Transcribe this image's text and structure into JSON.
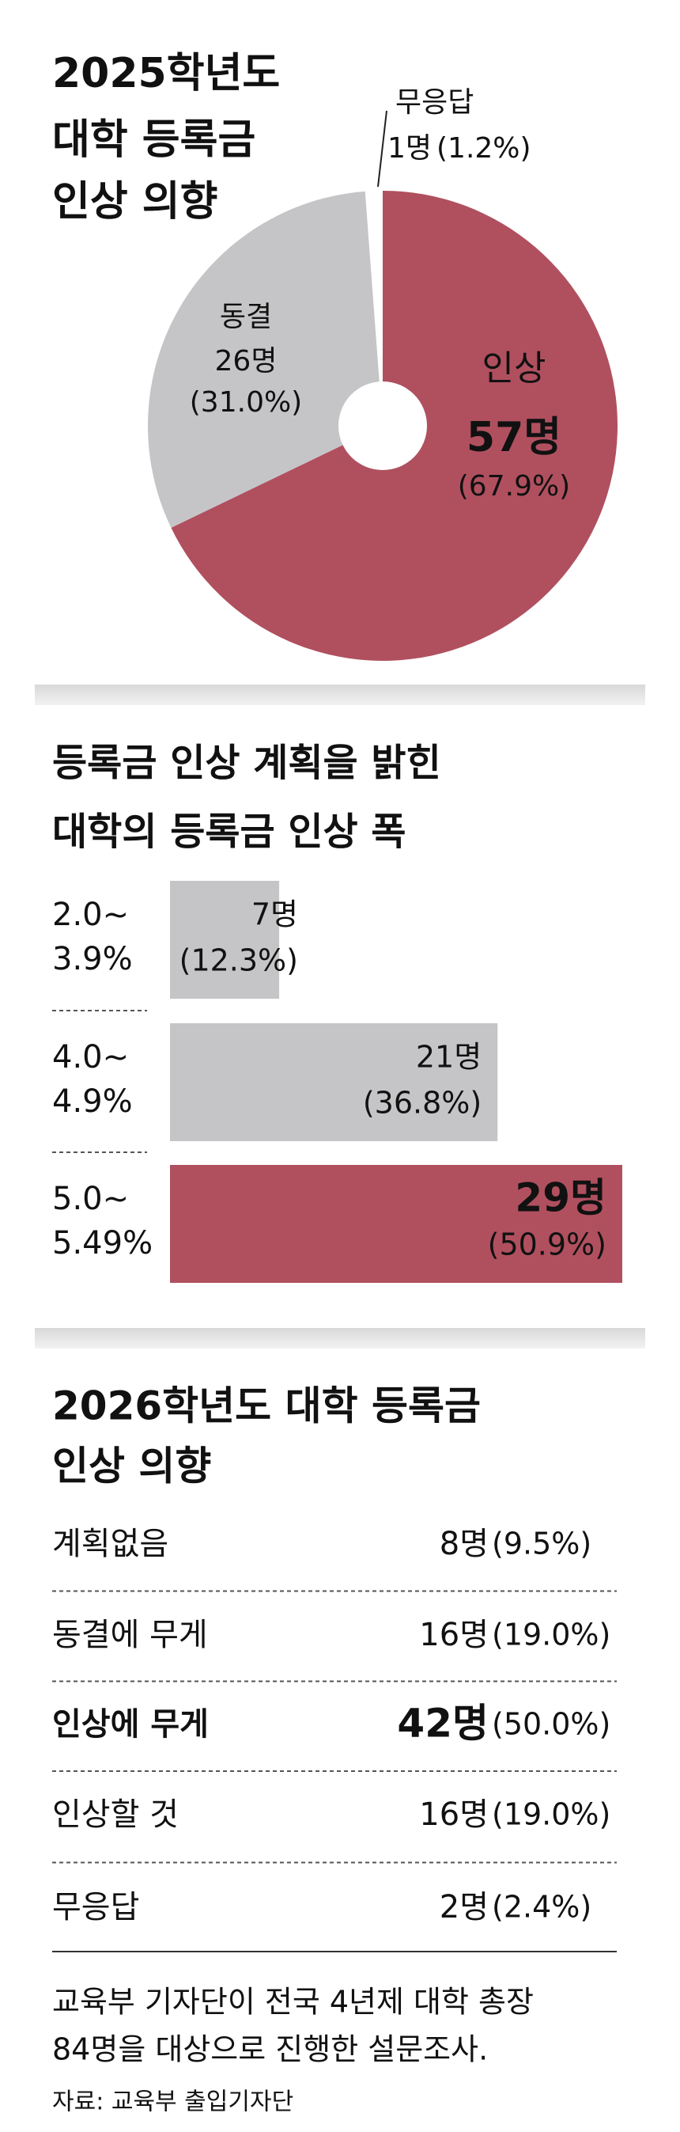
{
  "chart_data": [
    {
      "type": "pie",
      "title": [
        "2025학년도",
        "대학 등록금",
        "인상 의향"
      ],
      "categories": [
        "인상",
        "동결",
        "무응답"
      ],
      "values": [
        57,
        26,
        1
      ],
      "value_labels": [
        "57명",
        "26명",
        "1명"
      ],
      "percent_labels": [
        "(67.9%)",
        "(31.0%)",
        "(1.2%)"
      ],
      "colors": [
        "#b0505f",
        "#c5c5c7",
        "#ffffff"
      ]
    },
    {
      "type": "hbar",
      "title": [
        "등록금 인상 계획을 밝힌",
        "대학의 등록금 인상 폭"
      ],
      "categories": [
        [
          "2.0~",
          "3.9%"
        ],
        [
          "4.0~",
          "4.9%"
        ],
        [
          "5.0~",
          "5.49%"
        ]
      ],
      "values": [
        7,
        21,
        29
      ],
      "value_labels": [
        "7명",
        "21명",
        "29명"
      ],
      "percent_labels": [
        "(12.3%)",
        "(36.8%)",
        "(50.9%)"
      ],
      "colors": [
        "#c5c5c7",
        "#c5c5c7",
        "#b0505f"
      ],
      "highlight": 2
    },
    {
      "type": "list",
      "title": [
        "2026학년도 대학 등록금",
        "인상 의향"
      ],
      "categories": [
        "계획없음",
        "동결에 무게",
        "인상에 무게",
        "인상할 것",
        "무응답"
      ],
      "values": [
        8,
        16,
        42,
        16,
        2
      ],
      "value_labels": [
        "8명",
        "16명",
        "42명",
        "16명",
        "2명"
      ],
      "percent_labels": [
        "(9.5%)",
        "(19.0%)",
        "(50.0%)",
        "(19.0%)",
        "(2.4%)"
      ],
      "highlight": 2,
      "highlight_color": "#b0505f"
    }
  ],
  "notes": [
    "교육부 기자단이 전국 4년제 대학 총장",
    "84명을 대상으로 진행한 설문조사."
  ],
  "source": "자료: 교육부 출입기자단"
}
